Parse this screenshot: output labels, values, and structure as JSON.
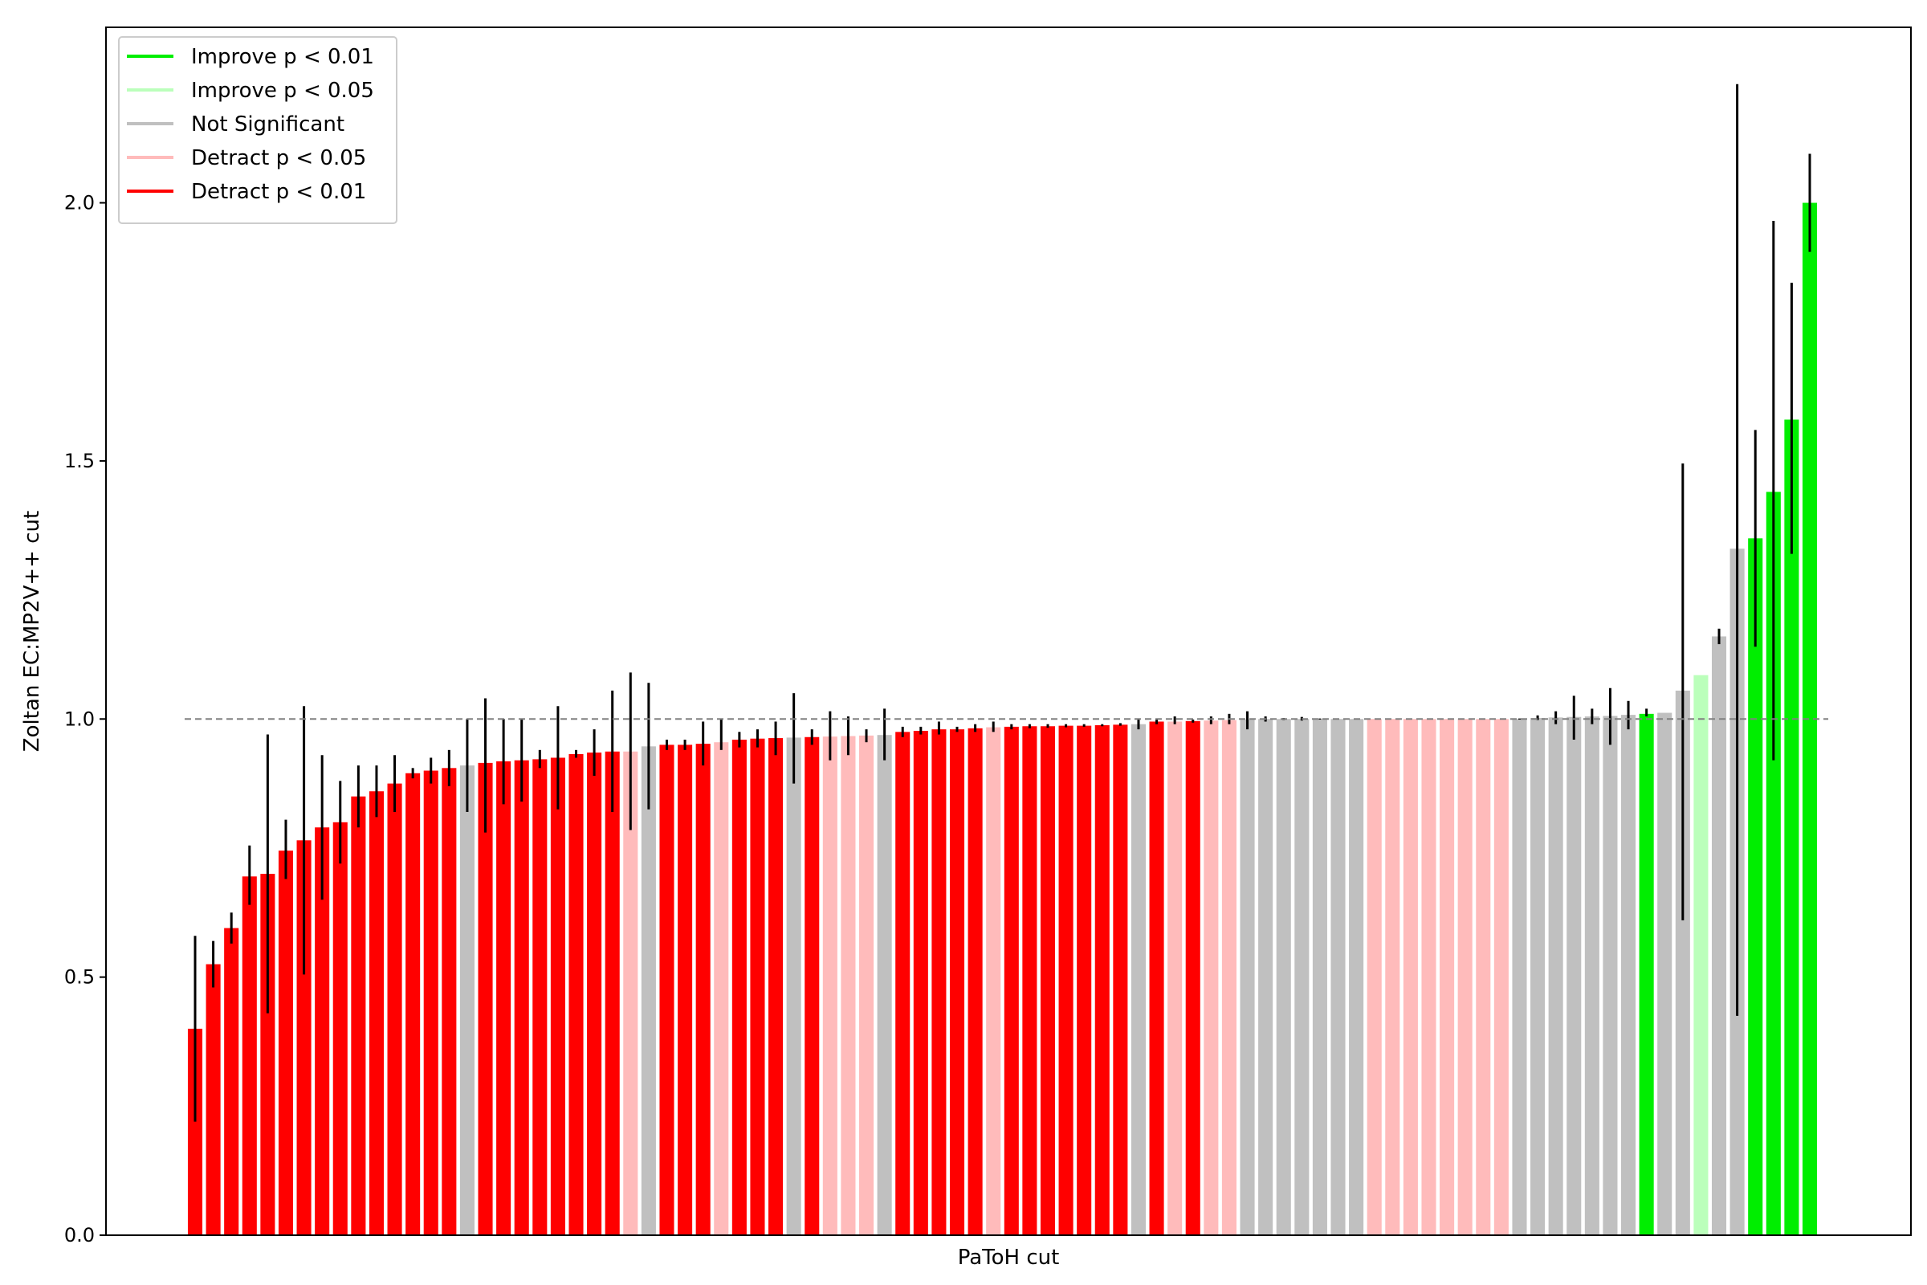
{
  "chart_data": {
    "type": "bar",
    "title": "",
    "xlabel": "PaToH cut",
    "ylabel": "Zoltan EC:MP2V++ cut",
    "ylim": [
      0,
      2.34
    ],
    "yticks": [
      "0.0",
      "0.5",
      "1.0",
      "1.5",
      "2.0"
    ],
    "ytick_values": [
      0,
      0.5,
      1.0,
      1.5,
      2.0
    ],
    "reference_line": 1.0,
    "grid": false,
    "legend_position": "top-left",
    "legend": [
      {
        "key": "ig1",
        "label": "Improve p < 0.01",
        "color": "#00ee00"
      },
      {
        "key": "ig5",
        "label": "Improve p < 0.05",
        "color": "#bbffbb"
      },
      {
        "key": "ns",
        "label": "Not Significant",
        "color": "#c0c0c0"
      },
      {
        "key": "dt5",
        "label": "Detract p < 0.05",
        "color": "#ffbbbb"
      },
      {
        "key": "dt1",
        "label": "Detract p < 0.01",
        "color": "#ff0000"
      }
    ],
    "bars": [
      {
        "v": 0.4,
        "lo": 0.22,
        "hi": 0.58,
        "c": "dt1"
      },
      {
        "v": 0.525,
        "lo": 0.48,
        "hi": 0.57,
        "c": "dt1"
      },
      {
        "v": 0.595,
        "lo": 0.565,
        "hi": 0.625,
        "c": "dt1"
      },
      {
        "v": 0.695,
        "lo": 0.64,
        "hi": 0.755,
        "c": "dt1"
      },
      {
        "v": 0.7,
        "lo": 0.43,
        "hi": 0.97,
        "c": "dt1"
      },
      {
        "v": 0.745,
        "lo": 0.69,
        "hi": 0.805,
        "c": "dt1"
      },
      {
        "v": 0.765,
        "lo": 0.505,
        "hi": 1.025,
        "c": "dt1"
      },
      {
        "v": 0.79,
        "lo": 0.65,
        "hi": 0.93,
        "c": "dt1"
      },
      {
        "v": 0.8,
        "lo": 0.72,
        "hi": 0.88,
        "c": "dt1"
      },
      {
        "v": 0.85,
        "lo": 0.79,
        "hi": 0.91,
        "c": "dt1"
      },
      {
        "v": 0.86,
        "lo": 0.81,
        "hi": 0.91,
        "c": "dt1"
      },
      {
        "v": 0.875,
        "lo": 0.82,
        "hi": 0.93,
        "c": "dt1"
      },
      {
        "v": 0.895,
        "lo": 0.885,
        "hi": 0.905,
        "c": "dt1"
      },
      {
        "v": 0.9,
        "lo": 0.875,
        "hi": 0.925,
        "c": "dt1"
      },
      {
        "v": 0.905,
        "lo": 0.87,
        "hi": 0.94,
        "c": "dt1"
      },
      {
        "v": 0.91,
        "lo": 0.82,
        "hi": 1.0,
        "c": "ns"
      },
      {
        "v": 0.915,
        "lo": 0.78,
        "hi": 1.04,
        "c": "dt1"
      },
      {
        "v": 0.918,
        "lo": 0.835,
        "hi": 1.0,
        "c": "dt1"
      },
      {
        "v": 0.92,
        "lo": 0.84,
        "hi": 1.0,
        "c": "dt1"
      },
      {
        "v": 0.922,
        "lo": 0.905,
        "hi": 0.94,
        "c": "dt1"
      },
      {
        "v": 0.925,
        "lo": 0.825,
        "hi": 1.025,
        "c": "dt1"
      },
      {
        "v": 0.932,
        "lo": 0.925,
        "hi": 0.94,
        "c": "dt1"
      },
      {
        "v": 0.935,
        "lo": 0.89,
        "hi": 0.98,
        "c": "dt1"
      },
      {
        "v": 0.937,
        "lo": 0.82,
        "hi": 1.055,
        "c": "dt1"
      },
      {
        "v": 0.937,
        "lo": 0.785,
        "hi": 1.09,
        "c": "dt5"
      },
      {
        "v": 0.947,
        "lo": 0.825,
        "hi": 1.07,
        "c": "ns"
      },
      {
        "v": 0.95,
        "lo": 0.94,
        "hi": 0.96,
        "c": "dt1"
      },
      {
        "v": 0.95,
        "lo": 0.94,
        "hi": 0.96,
        "c": "dt1"
      },
      {
        "v": 0.952,
        "lo": 0.91,
        "hi": 0.995,
        "c": "dt1"
      },
      {
        "v": 0.955,
        "lo": 0.94,
        "hi": 1.0,
        "c": "dt5"
      },
      {
        "v": 0.96,
        "lo": 0.945,
        "hi": 0.975,
        "c": "dt1"
      },
      {
        "v": 0.962,
        "lo": 0.945,
        "hi": 0.98,
        "c": "dt1"
      },
      {
        "v": 0.963,
        "lo": 0.93,
        "hi": 0.995,
        "c": "dt1"
      },
      {
        "v": 0.964,
        "lo": 0.875,
        "hi": 1.05,
        "c": "ns"
      },
      {
        "v": 0.965,
        "lo": 0.95,
        "hi": 0.98,
        "c": "dt1"
      },
      {
        "v": 0.966,
        "lo": 0.92,
        "hi": 1.015,
        "c": "dt5"
      },
      {
        "v": 0.967,
        "lo": 0.93,
        "hi": 1.005,
        "c": "dt5"
      },
      {
        "v": 0.968,
        "lo": 0.955,
        "hi": 0.98,
        "c": "dt5"
      },
      {
        "v": 0.969,
        "lo": 0.92,
        "hi": 1.02,
        "c": "ns"
      },
      {
        "v": 0.975,
        "lo": 0.965,
        "hi": 0.985,
        "c": "dt1"
      },
      {
        "v": 0.977,
        "lo": 0.97,
        "hi": 0.985,
        "c": "dt1"
      },
      {
        "v": 0.98,
        "lo": 0.97,
        "hi": 0.995,
        "c": "dt1"
      },
      {
        "v": 0.98,
        "lo": 0.975,
        "hi": 0.985,
        "c": "dt1"
      },
      {
        "v": 0.982,
        "lo": 0.975,
        "hi": 0.99,
        "c": "dt1"
      },
      {
        "v": 0.984,
        "lo": 0.975,
        "hi": 0.995,
        "c": "dt5"
      },
      {
        "v": 0.985,
        "lo": 0.98,
        "hi": 0.99,
        "c": "dt1"
      },
      {
        "v": 0.986,
        "lo": 0.982,
        "hi": 0.99,
        "c": "dt1"
      },
      {
        "v": 0.986,
        "lo": 0.983,
        "hi": 0.99,
        "c": "dt1"
      },
      {
        "v": 0.987,
        "lo": 0.984,
        "hi": 0.99,
        "c": "dt1"
      },
      {
        "v": 0.987,
        "lo": 0.985,
        "hi": 0.99,
        "c": "dt1"
      },
      {
        "v": 0.988,
        "lo": 0.986,
        "hi": 0.99,
        "c": "dt1"
      },
      {
        "v": 0.989,
        "lo": 0.987,
        "hi": 0.992,
        "c": "dt1"
      },
      {
        "v": 0.99,
        "lo": 0.98,
        "hi": 1.0,
        "c": "ns"
      },
      {
        "v": 0.995,
        "lo": 0.99,
        "hi": 1.0,
        "c": "dt1"
      },
      {
        "v": 0.995,
        "lo": 0.99,
        "hi": 1.005,
        "c": "dt5"
      },
      {
        "v": 0.996,
        "lo": 0.993,
        "hi": 0.999,
        "c": "dt1"
      },
      {
        "v": 0.997,
        "lo": 0.99,
        "hi": 1.005,
        "c": "dt5"
      },
      {
        "v": 0.998,
        "lo": 0.99,
        "hi": 1.01,
        "c": "dt5"
      },
      {
        "v": 0.999,
        "lo": 0.98,
        "hi": 1.015,
        "c": "ns"
      },
      {
        "v": 1.0,
        "lo": 0.995,
        "hi": 1.005,
        "c": "ns"
      },
      {
        "v": 1.0,
        "lo": 0.998,
        "hi": 1.002,
        "c": "ns"
      },
      {
        "v": 1.0,
        "lo": 0.997,
        "hi": 1.004,
        "c": "ns"
      },
      {
        "v": 1.0,
        "lo": 0.999,
        "hi": 1.001,
        "c": "ns"
      },
      {
        "v": 1.0,
        "lo": 0.999,
        "hi": 1.001,
        "c": "ns"
      },
      {
        "v": 1.0,
        "lo": 0.999,
        "hi": 1.001,
        "c": "ns"
      },
      {
        "v": 1.0,
        "lo": 1.0,
        "hi": 1.0,
        "c": "dt5"
      },
      {
        "v": 1.0,
        "lo": 1.0,
        "hi": 1.0,
        "c": "dt5"
      },
      {
        "v": 1.0,
        "lo": 1.0,
        "hi": 1.0,
        "c": "dt5"
      },
      {
        "v": 1.0,
        "lo": 1.0,
        "hi": 1.0,
        "c": "dt5"
      },
      {
        "v": 1.0,
        "lo": 1.0,
        "hi": 1.0,
        "c": "dt5"
      },
      {
        "v": 1.0,
        "lo": 1.0,
        "hi": 1.0,
        "c": "dt5"
      },
      {
        "v": 1.0,
        "lo": 1.0,
        "hi": 1.0,
        "c": "dt5"
      },
      {
        "v": 1.0,
        "lo": 1.0,
        "hi": 1.0,
        "c": "dt5"
      },
      {
        "v": 1.0,
        "lo": 0.999,
        "hi": 1.001,
        "c": "ns"
      },
      {
        "v": 1.002,
        "lo": 0.998,
        "hi": 1.007,
        "c": "ns"
      },
      {
        "v": 1.003,
        "lo": 0.99,
        "hi": 1.015,
        "c": "ns"
      },
      {
        "v": 1.004,
        "lo": 0.96,
        "hi": 1.045,
        "c": "ns"
      },
      {
        "v": 1.005,
        "lo": 0.99,
        "hi": 1.02,
        "c": "ns"
      },
      {
        "v": 1.006,
        "lo": 0.95,
        "hi": 1.06,
        "c": "ns"
      },
      {
        "v": 1.008,
        "lo": 0.98,
        "hi": 1.035,
        "c": "ns"
      },
      {
        "v": 1.01,
        "lo": 1.005,
        "hi": 1.02,
        "c": "ig1"
      },
      {
        "v": 1.012,
        "lo": 1.012,
        "hi": 1.012,
        "c": "ns"
      },
      {
        "v": 1.055,
        "lo": 0.61,
        "hi": 1.495,
        "c": "ns"
      },
      {
        "v": 1.085,
        "lo": 1.085,
        "hi": 1.085,
        "c": "ig5"
      },
      {
        "v": 1.16,
        "lo": 1.145,
        "hi": 1.175,
        "c": "ns"
      },
      {
        "v": 1.33,
        "lo": 0.425,
        "hi": 2.23,
        "c": "ns"
      },
      {
        "v": 1.35,
        "lo": 1.14,
        "hi": 1.56,
        "c": "ig1"
      },
      {
        "v": 1.44,
        "lo": 0.92,
        "hi": 1.965,
        "c": "ig1"
      },
      {
        "v": 1.58,
        "lo": 1.32,
        "hi": 1.845,
        "c": "ig1"
      },
      {
        "v": 2.0,
        "lo": 1.905,
        "hi": 2.095,
        "c": "ig1"
      }
    ]
  }
}
